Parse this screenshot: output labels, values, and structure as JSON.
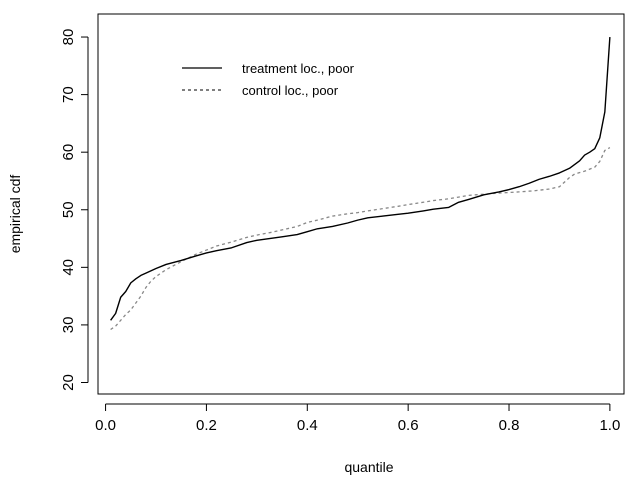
{
  "chart_data": {
    "type": "line",
    "title": "",
    "xlabel": "quantile",
    "ylabel": "empirical cdf",
    "xlim": [
      0,
      1
    ],
    "ylim": [
      18,
      84
    ],
    "xticks": [
      0.0,
      0.2,
      0.4,
      0.6,
      0.8,
      1.0
    ],
    "xtick_labels": [
      "0.0",
      "0.2",
      "0.4",
      "0.6",
      "0.8",
      "1.0"
    ],
    "yticks": [
      20,
      30,
      40,
      50,
      60,
      70,
      80
    ],
    "ytick_labels": [
      "20",
      "30",
      "40",
      "50",
      "60",
      "70",
      "80"
    ],
    "grid": false,
    "legend_position": "top-left",
    "series": [
      {
        "name": "treatment loc., poor",
        "style": "solid",
        "color": "#000000",
        "points": [
          [
            0.01,
            30.8
          ],
          [
            0.02,
            32.0
          ],
          [
            0.03,
            34.8
          ],
          [
            0.04,
            35.8
          ],
          [
            0.05,
            37.3
          ],
          [
            0.06,
            38.0
          ],
          [
            0.07,
            38.6
          ],
          [
            0.08,
            39.0
          ],
          [
            0.1,
            39.8
          ],
          [
            0.12,
            40.5
          ],
          [
            0.15,
            41.2
          ],
          [
            0.18,
            42.0
          ],
          [
            0.2,
            42.5
          ],
          [
            0.22,
            42.9
          ],
          [
            0.25,
            43.4
          ],
          [
            0.28,
            44.3
          ],
          [
            0.3,
            44.7
          ],
          [
            0.35,
            45.3
          ],
          [
            0.38,
            45.7
          ],
          [
            0.4,
            46.2
          ],
          [
            0.42,
            46.7
          ],
          [
            0.45,
            47.1
          ],
          [
            0.48,
            47.7
          ],
          [
            0.5,
            48.2
          ],
          [
            0.52,
            48.6
          ],
          [
            0.55,
            48.9
          ],
          [
            0.58,
            49.2
          ],
          [
            0.6,
            49.4
          ],
          [
            0.63,
            49.8
          ],
          [
            0.65,
            50.1
          ],
          [
            0.68,
            50.4
          ],
          [
            0.7,
            51.3
          ],
          [
            0.72,
            51.8
          ],
          [
            0.75,
            52.6
          ],
          [
            0.78,
            53.1
          ],
          [
            0.8,
            53.5
          ],
          [
            0.82,
            54.0
          ],
          [
            0.84,
            54.6
          ],
          [
            0.86,
            55.3
          ],
          [
            0.88,
            55.8
          ],
          [
            0.9,
            56.4
          ],
          [
            0.92,
            57.2
          ],
          [
            0.94,
            58.5
          ],
          [
            0.95,
            59.5
          ],
          [
            0.96,
            60.0
          ],
          [
            0.97,
            60.6
          ],
          [
            0.98,
            62.5
          ],
          [
            0.99,
            67.0
          ],
          [
            1.0,
            80.0
          ]
        ]
      },
      {
        "name": "control loc., poor",
        "style": "dashed",
        "color": "#888888",
        "points": [
          [
            0.01,
            29.2
          ],
          [
            0.02,
            29.8
          ],
          [
            0.03,
            30.8
          ],
          [
            0.04,
            31.8
          ],
          [
            0.05,
            32.6
          ],
          [
            0.06,
            33.8
          ],
          [
            0.07,
            35.0
          ],
          [
            0.08,
            36.5
          ],
          [
            0.09,
            37.6
          ],
          [
            0.1,
            38.4
          ],
          [
            0.12,
            39.6
          ],
          [
            0.15,
            41.0
          ],
          [
            0.18,
            42.3
          ],
          [
            0.2,
            43.0
          ],
          [
            0.22,
            43.7
          ],
          [
            0.25,
            44.4
          ],
          [
            0.28,
            45.2
          ],
          [
            0.3,
            45.6
          ],
          [
            0.33,
            46.1
          ],
          [
            0.35,
            46.5
          ],
          [
            0.38,
            47.1
          ],
          [
            0.4,
            47.8
          ],
          [
            0.42,
            48.2
          ],
          [
            0.45,
            48.9
          ],
          [
            0.48,
            49.3
          ],
          [
            0.5,
            49.5
          ],
          [
            0.52,
            49.8
          ],
          [
            0.55,
            50.2
          ],
          [
            0.58,
            50.6
          ],
          [
            0.6,
            50.9
          ],
          [
            0.63,
            51.3
          ],
          [
            0.65,
            51.6
          ],
          [
            0.68,
            51.9
          ],
          [
            0.7,
            52.2
          ],
          [
            0.72,
            52.5
          ],
          [
            0.75,
            52.7
          ],
          [
            0.78,
            52.9
          ],
          [
            0.8,
            53.0
          ],
          [
            0.82,
            53.1
          ],
          [
            0.85,
            53.3
          ],
          [
            0.88,
            53.6
          ],
          [
            0.9,
            54.0
          ],
          [
            0.91,
            54.8
          ],
          [
            0.92,
            55.6
          ],
          [
            0.93,
            56.2
          ],
          [
            0.95,
            56.7
          ],
          [
            0.97,
            57.4
          ],
          [
            0.98,
            58.4
          ],
          [
            0.99,
            60.3
          ],
          [
            1.0,
            60.8
          ]
        ]
      }
    ]
  },
  "colors": {
    "axis": "#000000",
    "background": "#ffffff"
  }
}
